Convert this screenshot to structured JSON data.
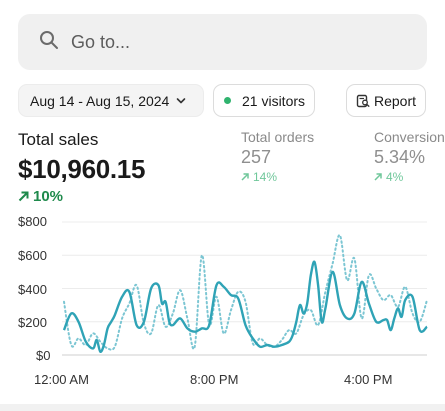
{
  "search": {
    "placeholder": "Go to..."
  },
  "filters": {
    "date_range": "Aug 14 - Aug 15, 2024",
    "visitors": "21 visitors",
    "report_label": "Report"
  },
  "metrics": {
    "total_sales": {
      "label": "Total sales",
      "value": "$10,960.15",
      "change": "10%"
    },
    "total_orders": {
      "label": "Total orders",
      "value": "257",
      "change": "14%"
    },
    "conversion": {
      "label": "Conversion",
      "value": "5.34%",
      "change": "4%"
    }
  },
  "colors": {
    "accent": "#2fa3b6",
    "positive": "#1f8a4c",
    "positive_light": "#6fc79a",
    "live_dot": "#2fb36e"
  },
  "chart_data": {
    "type": "line",
    "ylim": [
      0,
      800
    ],
    "y_ticks": [
      "$800",
      "$600",
      "$400",
      "$200",
      "$0"
    ],
    "x_ticks": [
      "12:00 AM",
      "8:00 PM",
      "4:00 PM"
    ],
    "grid": true,
    "series": [
      {
        "style": "solid",
        "x": [
          0,
          2,
          4,
          6,
          8,
          9,
          10,
          11,
          12,
          13,
          14,
          16,
          18,
          20,
          22,
          24,
          26,
          27,
          28,
          29,
          30,
          32,
          34,
          36,
          38,
          40,
          42,
          44,
          46,
          48,
          50,
          52,
          54,
          56,
          58,
          60,
          62,
          63,
          64,
          65,
          66,
          67,
          68,
          69,
          70,
          71,
          72,
          74,
          76,
          78,
          80,
          82,
          84,
          86,
          88,
          89,
          90,
          91,
          92,
          93,
          94,
          96,
          98,
          100
        ],
        "values": [
          150,
          250,
          200,
          80,
          40,
          90,
          20,
          60,
          160,
          200,
          240,
          350,
          380,
          180,
          200,
          400,
          420,
          310,
          320,
          200,
          180,
          220,
          160,
          140,
          160,
          180,
          420,
          410,
          360,
          340,
          180,
          100,
          50,
          60,
          50,
          60,
          80,
          120,
          200,
          300,
          250,
          310,
          480,
          560,
          420,
          200,
          280,
          500,
          300,
          220,
          250,
          440,
          310,
          200,
          210,
          210,
          150,
          220,
          280,
          230,
          330,
          350,
          150,
          170
        ]
      },
      {
        "style": "dotted",
        "x": [
          0,
          2,
          4,
          6,
          8,
          10,
          12,
          14,
          16,
          18,
          20,
          22,
          24,
          26,
          28,
          30,
          32,
          34,
          36,
          38,
          40,
          42,
          44,
          46,
          48,
          50,
          52,
          54,
          56,
          58,
          60,
          62,
          64,
          66,
          68,
          70,
          72,
          74,
          76,
          78,
          80,
          82,
          84,
          86,
          88,
          90,
          92,
          94,
          96,
          98,
          100
        ],
        "values": [
          320,
          60,
          100,
          60,
          130,
          80,
          40,
          50,
          220,
          310,
          420,
          190,
          130,
          300,
          170,
          250,
          390,
          220,
          50,
          600,
          180,
          350,
          130,
          270,
          380,
          320,
          70,
          100,
          60,
          50,
          90,
          150,
          130,
          240,
          270,
          180,
          380,
          550,
          720,
          450,
          580,
          220,
          480,
          400,
          330,
          360,
          290,
          410,
          250,
          200,
          330
        ]
      }
    ]
  }
}
